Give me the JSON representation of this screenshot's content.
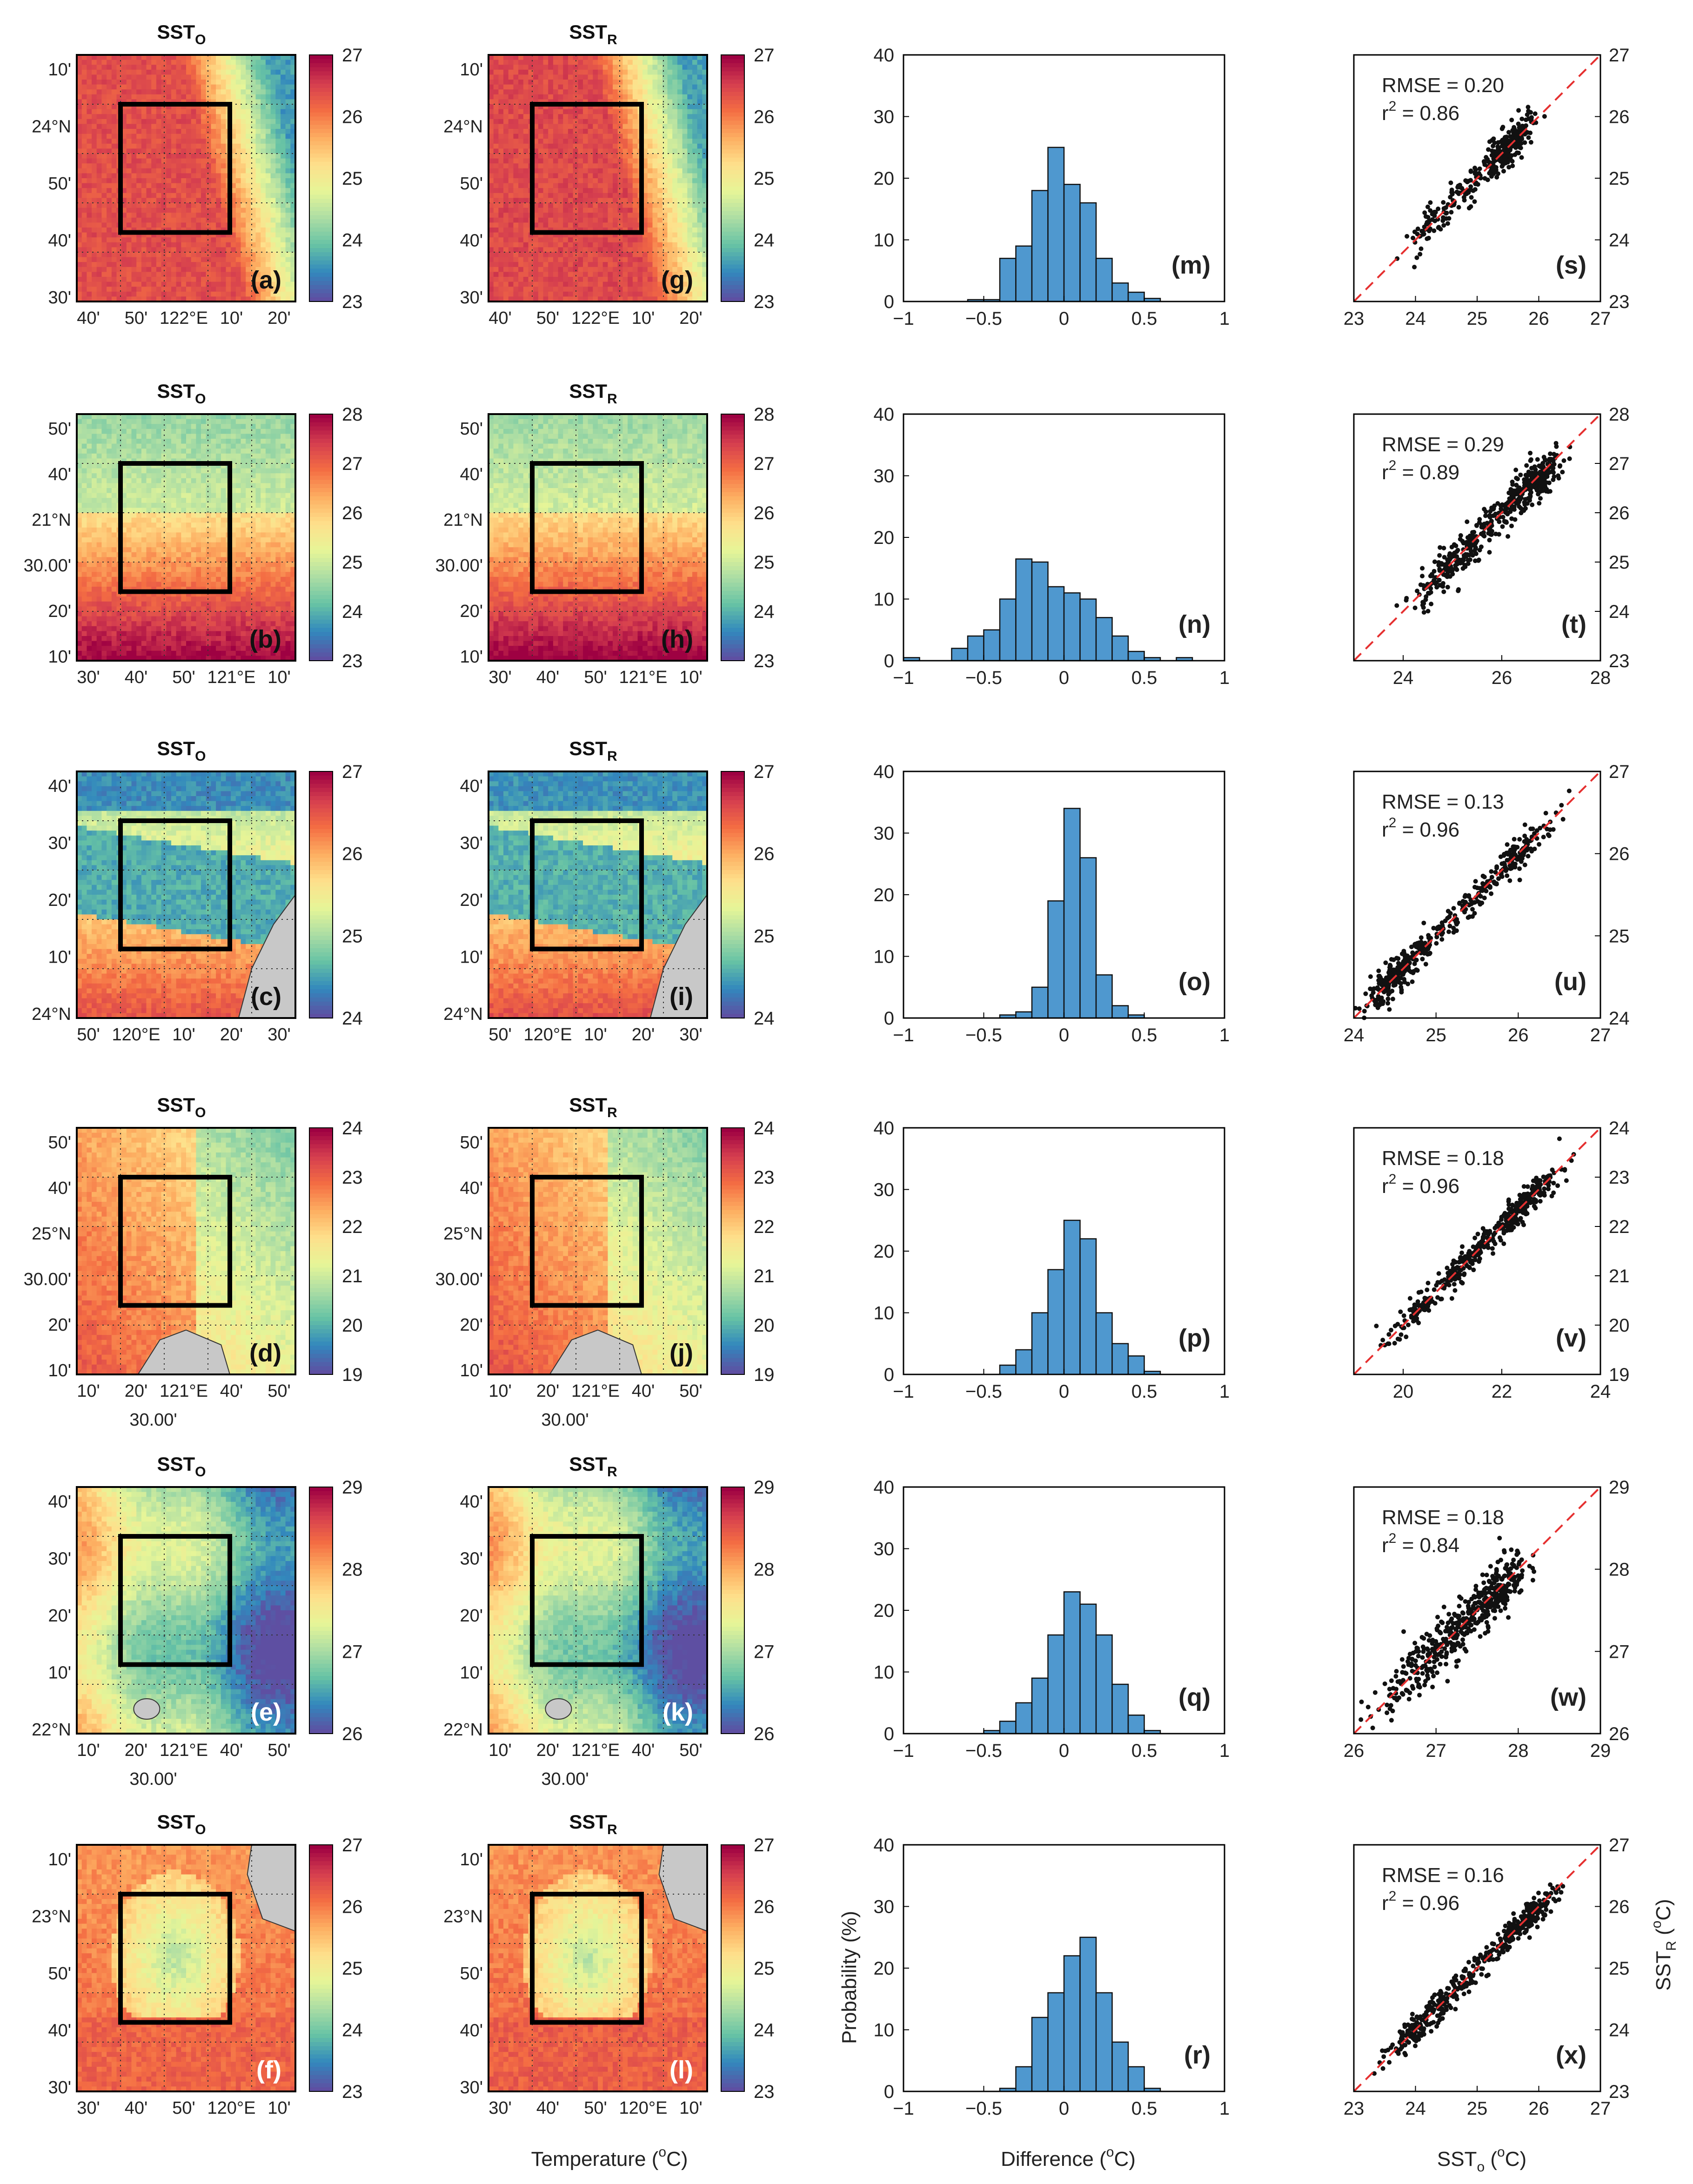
{
  "figure": {
    "map_titles": {
      "observed": "SST",
      "observed_sub": "O",
      "reconstructed": "SST",
      "reconstructed_sub": "R"
    },
    "bottom_labels": {
      "map": "Temperature (",
      "map_sup": "o",
      "map_end": "C)",
      "hist_x": "Difference (",
      "hist_x_sup": "o",
      "hist_x_end": "C)",
      "hist_y": "Probability (%)",
      "scatter_x": "SST",
      "scatter_x_sub": "o",
      "scatter_x_unit": " (",
      "scatter_x_sup": "o",
      "scatter_x_end": "C)",
      "scatter_y": "SST",
      "scatter_y_sub": "R",
      "scatter_y_unit": " (",
      "scatter_y_sup": "o",
      "scatter_y_end": "C)"
    },
    "colors": {
      "bar": "#4f98cf",
      "scatter_point": "#111111",
      "identity_line": "#e53030",
      "land": "#c8c8c8",
      "box": "#000000",
      "colormap": [
        "#5e4fa2",
        "#3288bd",
        "#66c2a5",
        "#abdda4",
        "#e6f598",
        "#fee08b",
        "#fdae61",
        "#f46d43",
        "#d53e4f",
        "#9e0142"
      ]
    }
  },
  "chart_data": [
    {
      "row": 1,
      "type": "heatmap",
      "observed_map": {
        "title": "SST_O",
        "panel": "(a)"
      },
      "reconstructed_map": {
        "title": "SST_R",
        "panel": "(g)"
      },
      "colorbar": {
        "range": [
          23,
          27
        ],
        "ticks": [
          "27",
          "26",
          "25",
          "24",
          "23"
        ]
      },
      "lat_ticks": [
        "10'",
        "24°N",
        "50'",
        "40'",
        "30'"
      ],
      "lon_ticks": [
        "40'",
        "50'",
        "122°E",
        "10'",
        "20'"
      ],
      "histogram": {
        "type": "bar",
        "panel": "(m)",
        "bin_edges": [
          -1.0,
          -0.9,
          -0.8,
          -0.7,
          -0.6,
          -0.5,
          -0.4,
          -0.3,
          -0.2,
          -0.1,
          0.0,
          0.1,
          0.2,
          0.3,
          0.4,
          0.5,
          0.6,
          0.7,
          0.8,
          0.9,
          1.0
        ],
        "values": [
          0,
          0,
          0,
          0,
          0.3,
          0.3,
          7,
          9,
          18,
          25,
          19,
          16,
          7,
          3,
          1.5,
          0.5,
          0,
          0,
          0,
          0
        ],
        "xlim": [
          -1,
          1
        ],
        "ylim": [
          0,
          40
        ],
        "xticks": [
          "−1",
          "−0.5",
          "0",
          "0.5",
          "1"
        ],
        "yticks": [
          "0",
          "10",
          "20",
          "30",
          "40"
        ]
      },
      "scatter": {
        "type": "scatter",
        "panel": "(s)",
        "rmse_label": "RMSE = 0.20",
        "r2_label": "r",
        "r2_value": " = 0.86",
        "lim": [
          23,
          27
        ],
        "ticks": [
          "23",
          "24",
          "25",
          "26",
          "27"
        ],
        "clusters": [
          [
            24.3,
            24.3,
            0.25,
            60
          ],
          [
            24.9,
            24.9,
            0.3,
            80
          ],
          [
            25.5,
            25.5,
            0.2,
            200
          ]
        ],
        "noise": 0.15
      }
    },
    {
      "row": 2,
      "type": "heatmap",
      "observed_map": {
        "title": "SST_O",
        "panel": "(b)"
      },
      "reconstructed_map": {
        "title": "SST_R",
        "panel": "(h)"
      },
      "colorbar": {
        "range": [
          23,
          28
        ],
        "ticks": [
          "28",
          "27",
          "26",
          "25",
          "24",
          "23"
        ]
      },
      "lat_ticks": [
        "50'",
        "40'",
        "21°N",
        "30.00'",
        "20'",
        "10'"
      ],
      "lon_ticks": [
        "30'",
        "40'",
        "50'",
        "121°E",
        "10'"
      ],
      "histogram": {
        "type": "bar",
        "panel": "(n)",
        "bin_edges": [
          -1.0,
          -0.9,
          -0.8,
          -0.7,
          -0.6,
          -0.5,
          -0.4,
          -0.3,
          -0.2,
          -0.1,
          0.0,
          0.1,
          0.2,
          0.3,
          0.4,
          0.5,
          0.6,
          0.7,
          0.8,
          0.9,
          1.0
        ],
        "values": [
          0.5,
          0,
          0,
          2,
          4,
          5,
          10,
          16.5,
          16,
          12,
          11,
          10,
          7,
          4,
          1.5,
          0.5,
          0,
          0.5,
          0,
          0
        ],
        "xlim": [
          -1,
          1
        ],
        "ylim": [
          0,
          40
        ],
        "xticks": [
          "−1",
          "−0.5",
          "0",
          "0.5",
          "1"
        ],
        "yticks": [
          "0",
          "10",
          "20",
          "30",
          "40"
        ]
      },
      "scatter": {
        "type": "scatter",
        "panel": "(t)",
        "rmse_label": "RMSE = 0.29",
        "r2_label": "r",
        "r2_value": " = 0.89",
        "lim": [
          23,
          28
        ],
        "ticks": [
          "23",
          "24",
          "25",
          "26",
          "27",
          "28"
        ],
        "xticks": [
          "24",
          "26",
          "28"
        ],
        "clusters": [
          [
            24.9,
            24.9,
            0.35,
            150
          ],
          [
            26.0,
            26.0,
            0.35,
            120
          ],
          [
            26.7,
            26.6,
            0.3,
            180
          ]
        ],
        "noise": 0.22
      }
    },
    {
      "row": 3,
      "type": "heatmap",
      "observed_map": {
        "title": "SST_O",
        "panel": "(c)"
      },
      "reconstructed_map": {
        "title": "SST_R",
        "panel": "(i)"
      },
      "colorbar": {
        "range": [
          24,
          27
        ],
        "ticks": [
          "27",
          "26",
          "25",
          "24"
        ]
      },
      "lat_ticks": [
        "40'",
        "30'",
        "20'",
        "10'",
        "24°N"
      ],
      "lon_ticks": [
        "50'",
        "120°E",
        "10'",
        "20'",
        "30'"
      ],
      "histogram": {
        "type": "bar",
        "panel": "(o)",
        "bin_edges": [
          -1.0,
          -0.9,
          -0.8,
          -0.7,
          -0.6,
          -0.5,
          -0.4,
          -0.3,
          -0.2,
          -0.1,
          0.0,
          0.1,
          0.2,
          0.3,
          0.4,
          0.5,
          0.6,
          0.7,
          0.8,
          0.9,
          1.0
        ],
        "values": [
          0,
          0,
          0,
          0,
          0,
          0,
          0.5,
          1,
          5,
          19,
          34,
          26,
          7,
          2,
          0.5,
          0,
          0,
          0,
          0,
          0
        ],
        "xlim": [
          -1,
          1
        ],
        "ylim": [
          0,
          40
        ],
        "xticks": [
          "−1",
          "−0.5",
          "0",
          "0.5",
          "1"
        ],
        "yticks": [
          "0",
          "10",
          "20",
          "30",
          "40"
        ]
      },
      "scatter": {
        "type": "scatter",
        "panel": "(u)",
        "rmse_label": "RMSE = 0.13",
        "r2_label": "r",
        "r2_value": " = 0.96",
        "lim": [
          24,
          27
        ],
        "ticks": [
          "24",
          "25",
          "26",
          "27"
        ],
        "clusters": [
          [
            24.5,
            24.5,
            0.2,
            220
          ],
          [
            25.3,
            25.3,
            0.4,
            110
          ],
          [
            26.0,
            26.0,
            0.25,
            120
          ]
        ],
        "noise": 0.1
      }
    },
    {
      "row": 4,
      "type": "heatmap",
      "observed_map": {
        "title": "SST_O",
        "panel": "(d)"
      },
      "reconstructed_map": {
        "title": "SST_R",
        "panel": "(j)"
      },
      "colorbar": {
        "range": [
          19,
          24
        ],
        "ticks": [
          "24",
          "23",
          "22",
          "21",
          "20",
          "19"
        ]
      },
      "lat_ticks": [
        "50'",
        "40'",
        "25°N",
        "30.00'",
        "20'",
        "10'"
      ],
      "lon_ticks": [
        "10'",
        "20'",
        "121°E",
        "40'",
        "50'"
      ],
      "lon_subtick": "30.00'",
      "histogram": {
        "type": "bar",
        "panel": "(p)",
        "bin_edges": [
          -1.0,
          -0.9,
          -0.8,
          -0.7,
          -0.6,
          -0.5,
          -0.4,
          -0.3,
          -0.2,
          -0.1,
          0.0,
          0.1,
          0.2,
          0.3,
          0.4,
          0.5,
          0.6,
          0.7,
          0.8,
          0.9,
          1.0
        ],
        "values": [
          0,
          0,
          0,
          0,
          0,
          0,
          1.5,
          4,
          10,
          17,
          25,
          22,
          10,
          5,
          3,
          0.5,
          0,
          0,
          0,
          0
        ],
        "xlim": [
          -1,
          1
        ],
        "ylim": [
          0,
          40
        ],
        "xticks": [
          "−1",
          "−0.5",
          "0",
          "0.5",
          "1"
        ],
        "yticks": [
          "0",
          "10",
          "20",
          "30",
          "40"
        ]
      },
      "scatter": {
        "type": "scatter",
        "panel": "(v)",
        "rmse_label": "RMSE = 0.18",
        "r2_label": "r",
        "r2_value": " = 0.96",
        "lim": [
          19,
          24
        ],
        "ticks": [
          "19",
          "20",
          "21",
          "22",
          "23",
          "24"
        ],
        "xticks": [
          "20",
          "22",
          "24"
        ],
        "clusters": [
          [
            20.4,
            20.4,
            0.4,
            90
          ],
          [
            21.4,
            21.4,
            0.5,
            170
          ],
          [
            22.5,
            22.5,
            0.35,
            180
          ]
        ],
        "noise": 0.15
      }
    },
    {
      "row": 5,
      "type": "heatmap",
      "observed_map": {
        "title": "SST_O",
        "panel": "(e)"
      },
      "reconstructed_map": {
        "title": "SST_R",
        "panel": "(k)"
      },
      "colorbar": {
        "range": [
          26,
          29
        ],
        "ticks": [
          "29",
          "28",
          "27",
          "26"
        ]
      },
      "lat_ticks": [
        "40'",
        "30'",
        "20'",
        "10'",
        "22°N"
      ],
      "lon_ticks": [
        "10'",
        "20'",
        "121°E",
        "40'",
        "50'"
      ],
      "lon_subtick": "30.00'",
      "histogram": {
        "type": "bar",
        "panel": "(q)",
        "bin_edges": [
          -1.0,
          -0.9,
          -0.8,
          -0.7,
          -0.6,
          -0.5,
          -0.4,
          -0.3,
          -0.2,
          -0.1,
          0.0,
          0.1,
          0.2,
          0.3,
          0.4,
          0.5,
          0.6,
          0.7,
          0.8,
          0.9,
          1.0
        ],
        "values": [
          0,
          0,
          0,
          0,
          0,
          0.5,
          2,
          5,
          9,
          16,
          23,
          21,
          16,
          8,
          3,
          0.5,
          0,
          0,
          0,
          0
        ],
        "xlim": [
          -1,
          1
        ],
        "ylim": [
          0,
          40
        ],
        "xticks": [
          "−1",
          "−0.5",
          "0",
          "0.5",
          "1"
        ],
        "yticks": [
          "0",
          "10",
          "20",
          "30",
          "40"
        ]
      },
      "scatter": {
        "type": "scatter",
        "panel": "(w)",
        "rmse_label": "RMSE = 0.18",
        "r2_label": "r",
        "r2_value": " = 0.84",
        "lim": [
          26,
          29
        ],
        "ticks": [
          "26",
          "27",
          "28",
          "29"
        ],
        "clusters": [
          [
            26.7,
            26.7,
            0.25,
            110
          ],
          [
            27.2,
            27.2,
            0.3,
            170
          ],
          [
            27.7,
            27.7,
            0.2,
            200
          ]
        ],
        "noise": 0.17
      }
    },
    {
      "row": 6,
      "type": "heatmap",
      "observed_map": {
        "title": "SST_O",
        "panel": "(f)"
      },
      "reconstructed_map": {
        "title": "SST_R",
        "panel": "(l)"
      },
      "colorbar": {
        "range": [
          23,
          27
        ],
        "ticks": [
          "27",
          "26",
          "25",
          "24",
          "23"
        ]
      },
      "lat_ticks": [
        "10'",
        "23°N",
        "50'",
        "40'",
        "30'"
      ],
      "lon_ticks": [
        "30'",
        "40'",
        "50'",
        "120°E",
        "10'"
      ],
      "histogram": {
        "type": "bar",
        "panel": "(r)",
        "bin_edges": [
          -1.0,
          -0.9,
          -0.8,
          -0.7,
          -0.6,
          -0.5,
          -0.4,
          -0.3,
          -0.2,
          -0.1,
          0.0,
          0.1,
          0.2,
          0.3,
          0.4,
          0.5,
          0.6,
          0.7,
          0.8,
          0.9,
          1.0
        ],
        "values": [
          0,
          0,
          0,
          0,
          0,
          0,
          0.5,
          4,
          12,
          16,
          22,
          25,
          16,
          8,
          4,
          0.5,
          0,
          0,
          0,
          0
        ],
        "xlim": [
          -1,
          1
        ],
        "ylim": [
          0,
          40
        ],
        "xticks": [
          "−1",
          "−0.5",
          "0",
          "0.5",
          "1"
        ],
        "yticks": [
          "0",
          "10",
          "20",
          "30",
          "40"
        ]
      },
      "scatter": {
        "type": "scatter",
        "panel": "(x)",
        "rmse_label": "RMSE = 0.16",
        "r2_label": "r",
        "r2_value": " = 0.96",
        "lim": [
          23,
          27
        ],
        "ticks": [
          "23",
          "24",
          "25",
          "26",
          "27"
        ],
        "clusters": [
          [
            24.1,
            24.1,
            0.3,
            150
          ],
          [
            24.9,
            24.9,
            0.4,
            110
          ],
          [
            25.8,
            25.8,
            0.25,
            190
          ]
        ],
        "noise": 0.12
      }
    }
  ]
}
